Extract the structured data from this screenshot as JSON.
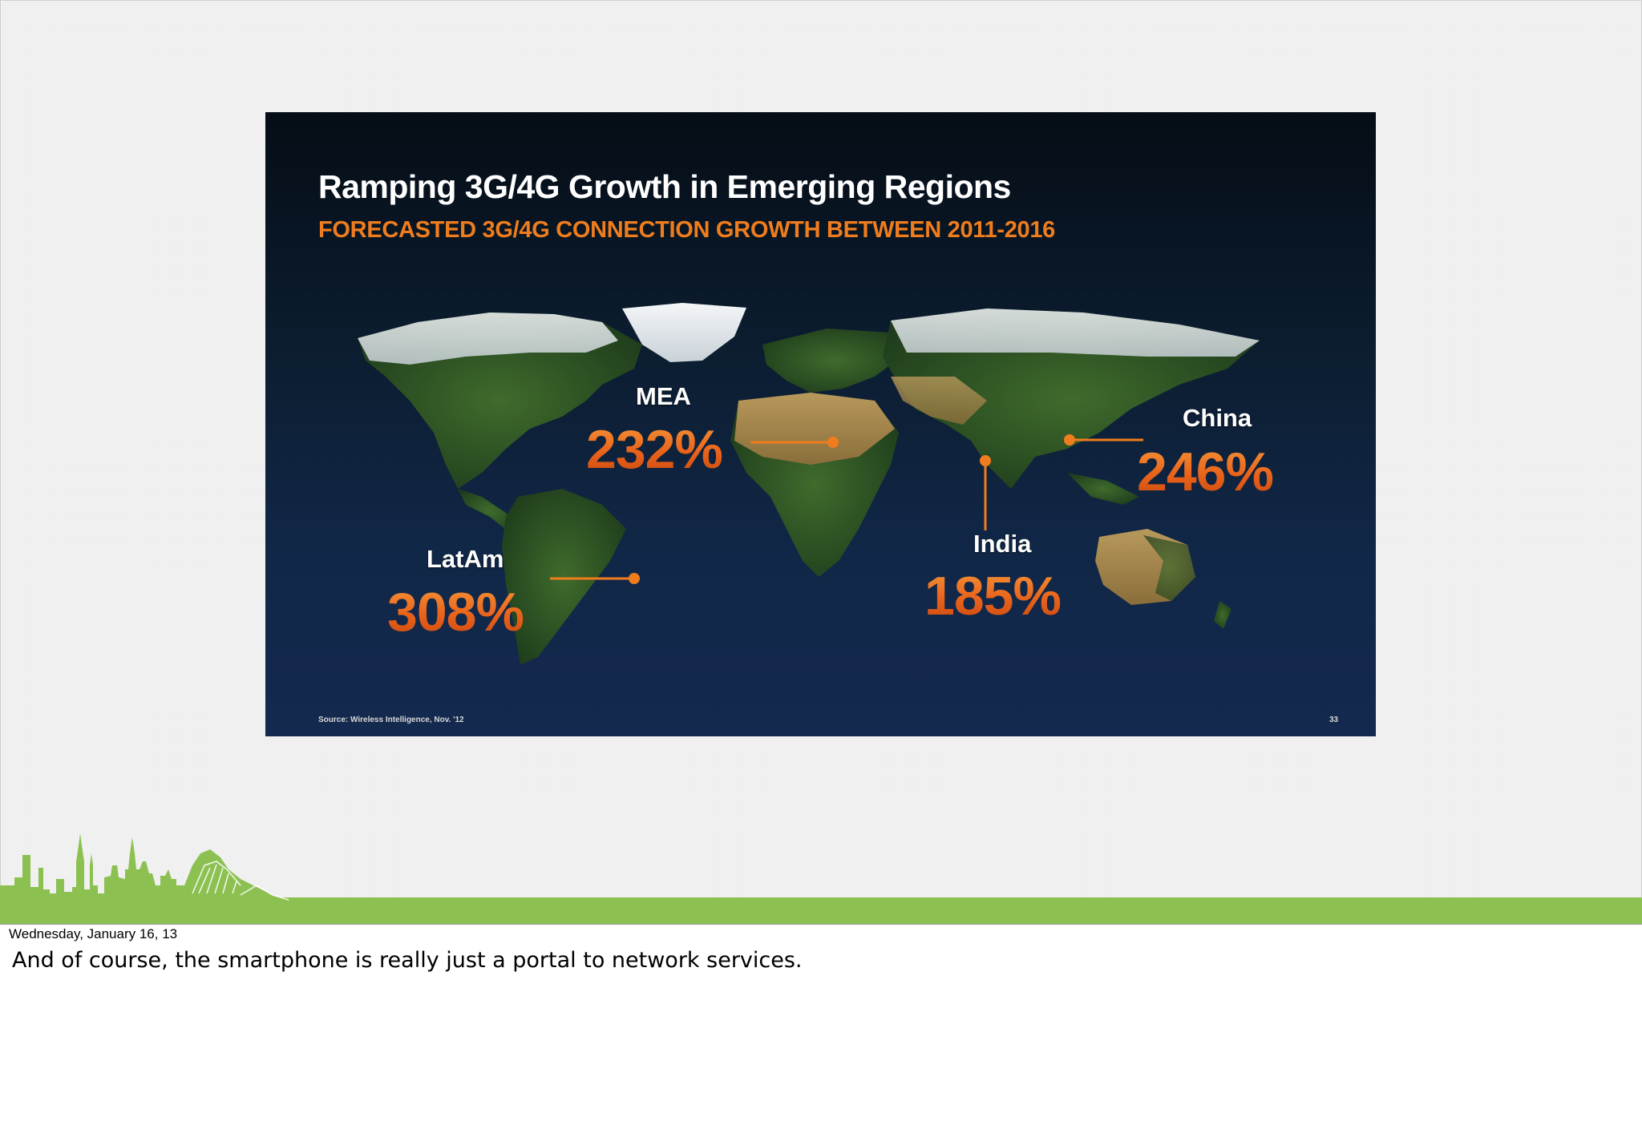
{
  "slide": {
    "title": "Ramping 3G/4G Growth in Emerging Regions",
    "subtitle": "FORECASTED 3G/4G CONNECTION GROWTH BETWEEN 2011-2016",
    "source": "Source: Wireless Intelligence, Nov. '12",
    "page_number": "33",
    "regions": [
      {
        "label": "MEA",
        "value": "232%"
      },
      {
        "label": "China",
        "value": "246%"
      },
      {
        "label": "India",
        "value": "185%"
      },
      {
        "label": "LatAm",
        "value": "308%"
      }
    ]
  },
  "footer": {
    "date": "Wednesday, January 16, 13",
    "notes": "And of course, the smartphone is really just a portal to network services."
  },
  "colors": {
    "accent_orange": "#f07d1d",
    "skyline_green": "#8cc152",
    "slide_background": "#0b1c2e"
  }
}
